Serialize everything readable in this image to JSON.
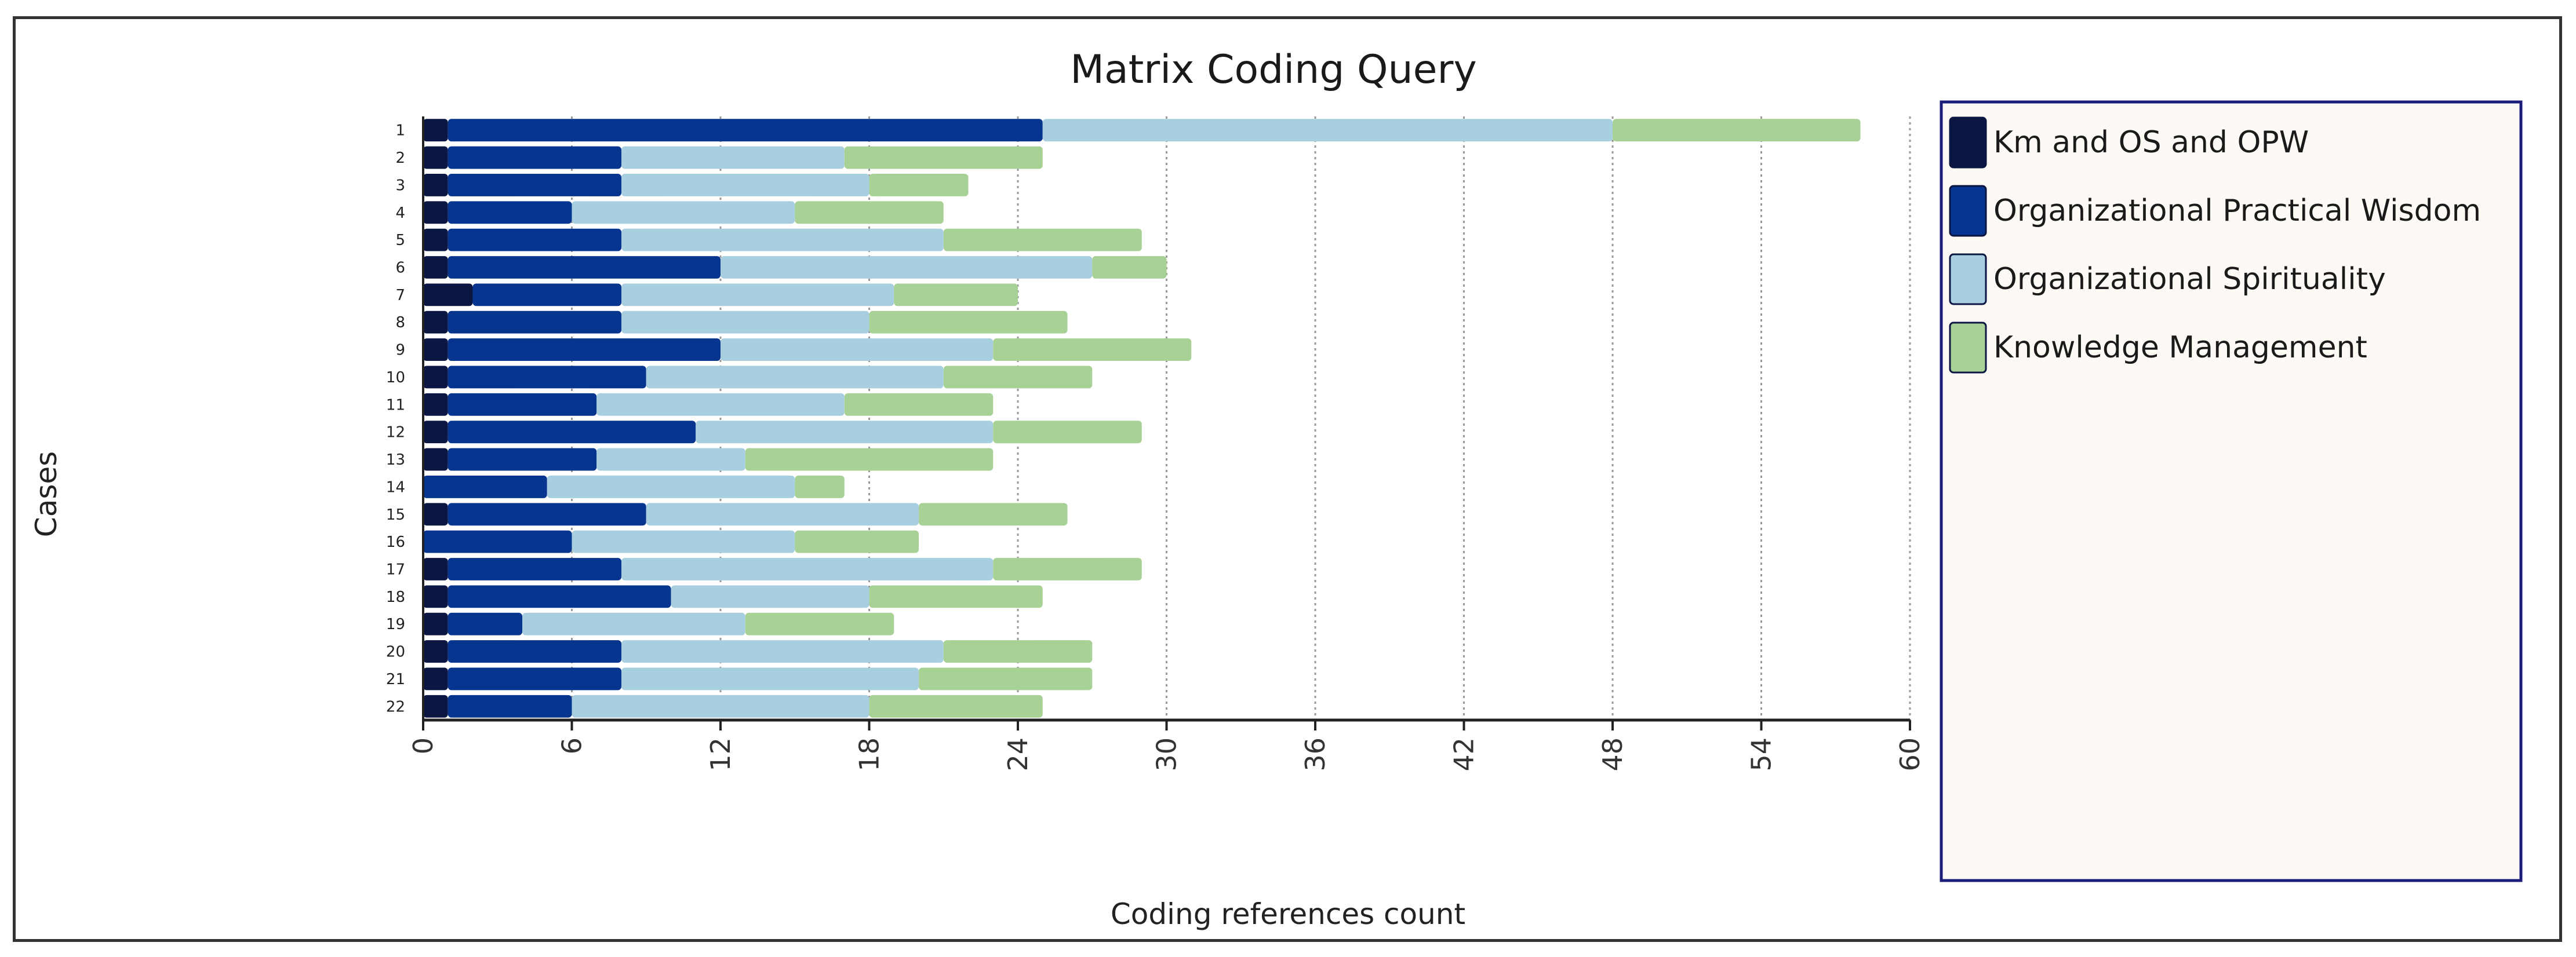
{
  "chart_data": {
    "type": "bar",
    "orientation": "horizontal",
    "stacked": true,
    "title": "Matrix Coding Query",
    "xlabel": "Coding references count",
    "ylabel": "Cases",
    "xlim": [
      0,
      60
    ],
    "xticks": [
      "0",
      "6",
      "12",
      "18",
      "24",
      "30",
      "36",
      "42",
      "48",
      "54",
      "60"
    ],
    "grid": "vertical-dotted",
    "legend_position": "right",
    "categories": [
      "1",
      "2",
      "3",
      "4",
      "5",
      "6",
      "7",
      "8",
      "9",
      "10",
      "11",
      "12",
      "13",
      "14",
      "15",
      "16",
      "17",
      "18",
      "19",
      "20",
      "21",
      "22"
    ],
    "series": [
      {
        "name": "Km and OS and OPW",
        "color": "#0b1642",
        "values": [
          1,
          1,
          1,
          1,
          1,
          1,
          2,
          1,
          1,
          1,
          1,
          1,
          1,
          0,
          1,
          0,
          1,
          1,
          1,
          1,
          1,
          1
        ]
      },
      {
        "name": "Organizational Practical Wisdom",
        "color": "#06358f",
        "values": [
          24,
          7,
          7,
          5,
          7,
          11,
          6,
          7,
          11,
          8,
          6,
          10,
          6,
          5,
          8,
          6,
          7,
          9,
          3,
          7,
          7,
          5
        ]
      },
      {
        "name": "Organizational Spirituality",
        "color": "#a8cfe0",
        "values": [
          23,
          9,
          10,
          9,
          13,
          15,
          11,
          10,
          11,
          12,
          10,
          12,
          6,
          10,
          11,
          9,
          15,
          8,
          9,
          13,
          12,
          12
        ]
      },
      {
        "name": "Knowledge Management",
        "color": "#a8d196",
        "values": [
          10,
          8,
          4,
          6,
          8,
          3,
          5,
          8,
          8,
          6,
          6,
          6,
          10,
          2,
          6,
          5,
          6,
          7,
          6,
          6,
          7,
          7
        ]
      }
    ]
  }
}
